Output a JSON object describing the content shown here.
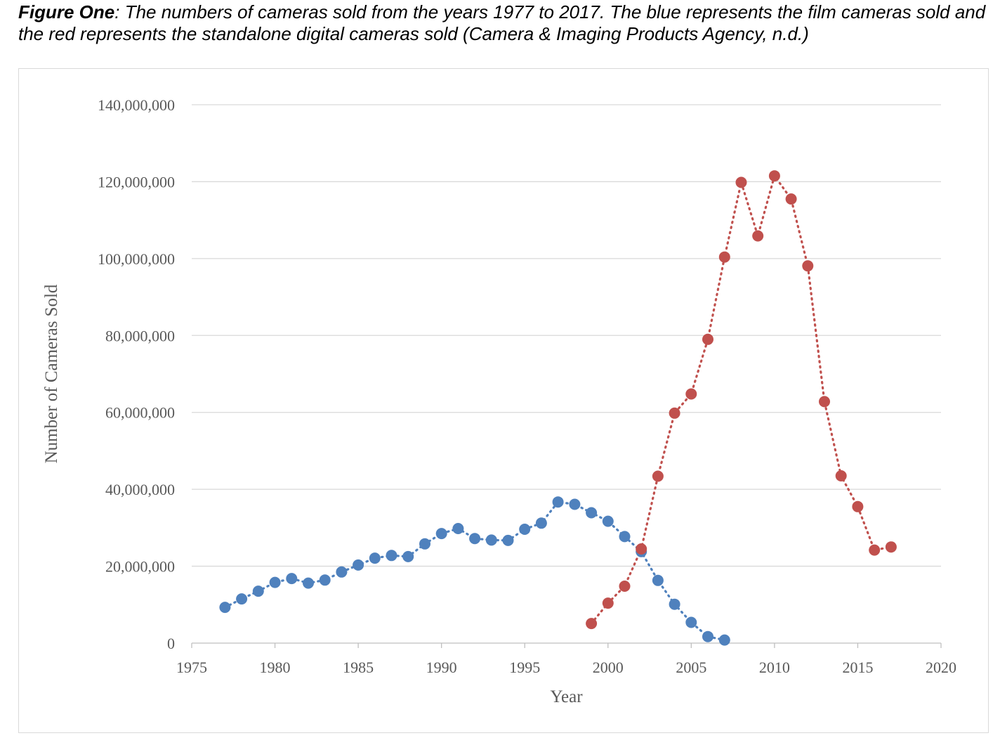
{
  "caption": {
    "lead": "Figure One",
    "text": ": The numbers of cameras sold from the years 1977 to 2017. The blue represents the film cameras sold and the red represents the standalone digital cameras sold (Camera & Imaging Products Agency, n.d.)"
  },
  "chart_data": {
    "type": "scatter",
    "xlabel": "Year",
    "ylabel": "Number of Cameras Sold",
    "xlim": [
      1975,
      2020
    ],
    "ylim": [
      0,
      140000000
    ],
    "x_ticks": [
      "1975",
      "1980",
      "1985",
      "1990",
      "1995",
      "2000",
      "2005",
      "2010",
      "2015",
      "2020"
    ],
    "y_ticks": [
      "0",
      "20,000,000",
      "40,000,000",
      "60,000,000",
      "80,000,000",
      "100,000,000",
      "120,000,000",
      "140,000,000"
    ],
    "grid": "horizontal",
    "line_style": "dotted",
    "series": [
      {
        "color": "#4f81bd",
        "x": [
          1977,
          1978,
          1979,
          1980,
          1981,
          1982,
          1983,
          1984,
          1985,
          1986,
          1987,
          1988,
          1989,
          1990,
          1991,
          1992,
          1993,
          1994,
          1995,
          1996,
          1997,
          1998,
          1999,
          2000,
          2001,
          2002,
          2003,
          2004,
          2005,
          2006,
          2007
        ],
        "y": [
          9300000,
          11500000,
          13500000,
          15800000,
          16800000,
          15600000,
          16400000,
          18500000,
          20300000,
          22100000,
          22800000,
          22500000,
          25800000,
          28500000,
          29800000,
          27200000,
          26800000,
          26700000,
          29600000,
          31200000,
          36700000,
          36100000,
          33900000,
          31700000,
          27700000,
          23800000,
          16300000,
          10100000,
          5400000,
          1700000,
          800000
        ]
      },
      {
        "color": "#c0504d",
        "x": [
          1999,
          2000,
          2001,
          2002,
          2003,
          2004,
          2005,
          2006,
          2007,
          2008,
          2009,
          2010,
          2011,
          2012,
          2013,
          2014,
          2015,
          2016,
          2017
        ],
        "y": [
          5100000,
          10400000,
          14800000,
          24500000,
          43400000,
          59800000,
          64800000,
          79000000,
          100400000,
          119800000,
          105900000,
          121500000,
          115500000,
          98100000,
          62800000,
          43500000,
          35500000,
          24200000,
          25000000
        ]
      }
    ]
  }
}
